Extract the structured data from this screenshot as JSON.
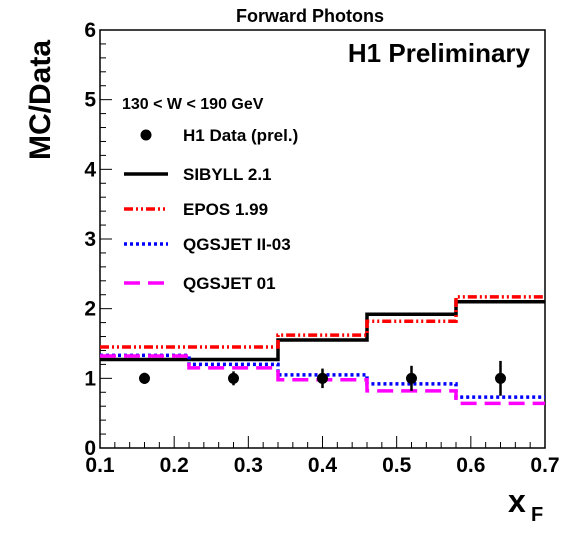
{
  "chart_data": {
    "type": "line",
    "title": "Forward Photons",
    "watermark": "H1 Preliminary",
    "cut_label": "130 < W < 190 GeV",
    "xlabel": "x",
    "xlabel_subscript": "F",
    "ylabel": "MC/Data",
    "xlim": [
      0.1,
      0.7
    ],
    "ylim": [
      0,
      6
    ],
    "x_ticks": [
      "0.1",
      "0.2",
      "0.3",
      "0.4",
      "0.5",
      "0.6",
      "0.7"
    ],
    "y_ticks": [
      "0",
      "1",
      "2",
      "3",
      "4",
      "5",
      "6"
    ],
    "grid": false,
    "legend_position": "top-left",
    "bin_edges": [
      0.1,
      0.22,
      0.34,
      0.46,
      0.58,
      0.7
    ],
    "data_series": {
      "name": "H1 Data (prel.)",
      "color": "#000000",
      "x": [
        0.16,
        0.28,
        0.4,
        0.52,
        0.64
      ],
      "y": [
        1.0,
        1.0,
        1.0,
        1.0,
        1.0
      ],
      "err": [
        0.08,
        0.1,
        0.14,
        0.18,
        0.25
      ]
    },
    "series": [
      {
        "name": "SIBYLL 2.1",
        "color": "#000000",
        "dash": "solid",
        "values": [
          1.27,
          1.27,
          1.55,
          1.92,
          2.1
        ]
      },
      {
        "name": "EPOS 1.99",
        "color": "#ff0000",
        "dash": "dashdot",
        "values": [
          1.45,
          1.45,
          1.62,
          1.82,
          2.17
        ]
      },
      {
        "name": "QGSJET II-03",
        "color": "#0000ff",
        "dash": "dotted",
        "values": [
          1.33,
          1.2,
          1.05,
          0.92,
          0.73
        ]
      },
      {
        "name": "QGSJET 01",
        "color": "#ff00ff",
        "dash": "longdash",
        "values": [
          1.32,
          1.15,
          0.98,
          0.82,
          0.64
        ]
      }
    ]
  }
}
